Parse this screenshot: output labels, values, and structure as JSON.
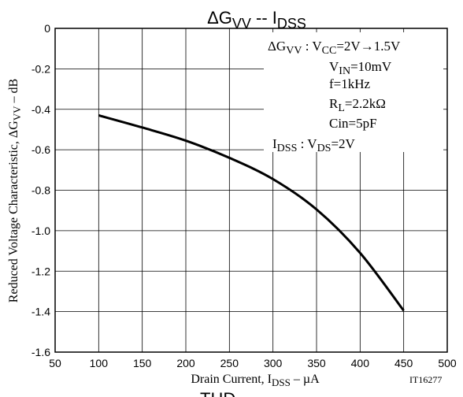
{
  "chart_data": {
    "type": "line",
    "title": {
      "prefix": "ΔG",
      "sub": "VV",
      "mid": " -- I",
      "sub2": "DSS"
    },
    "xlabel": {
      "main": "Drain Current, I",
      "sub": "DSS",
      "tail": " – µA"
    },
    "ylabel": "Reduced Voltage Characteristic, ΔG",
    "ylabel_sub": "VV",
    "ylabel_tail": " – dB",
    "code": "IT16277",
    "bottom_cut_text": "THD – ...",
    "xlim": [
      50,
      500
    ],
    "ylim": [
      -1.6,
      0
    ],
    "x_ticks": [
      50,
      100,
      150,
      200,
      250,
      300,
      350,
      400,
      450,
      500
    ],
    "x_tick_labels": [
      "50",
      "100",
      "150",
      "200",
      "250",
      "300",
      "350",
      "400",
      "450",
      "500"
    ],
    "y_ticks": [
      0,
      -0.2,
      -0.4,
      -0.6,
      -0.8,
      -1.0,
      -1.2,
      -1.4,
      -1.6
    ],
    "y_tick_labels": [
      "0",
      "-0.2",
      "-0.4",
      "-0.6",
      "-0.8",
      "-1.0",
      "-1.2",
      "-1.4",
      "-1.6"
    ],
    "grid": true,
    "series": [
      {
        "x": [
          100,
          150,
          200,
          250,
          300,
          350,
          400,
          450
        ],
        "y": [
          -0.43,
          -0.49,
          -0.555,
          -0.64,
          -0.745,
          -0.895,
          -1.11,
          -1.395
        ]
      }
    ],
    "annotations": {
      "line1_pre": "ΔG",
      "line1_sub": "VV",
      "line1_mid": " : V",
      "line1_sub2": "CC",
      "line1_tail": "=2V→1.5V",
      "line2_pre": "V",
      "line2_sub": "IN",
      "line2_tail": "=10mV",
      "line3": "f=1kHz",
      "line4_pre": "R",
      "line4_sub": "L",
      "line4_tail": "=2.2kΩ",
      "line5": "Cin=5pF",
      "line6_pre": "I",
      "line6_sub": "DSS",
      "line6_mid": " : V",
      "line6_sub2": "DS",
      "line6_tail": "=2V"
    }
  }
}
